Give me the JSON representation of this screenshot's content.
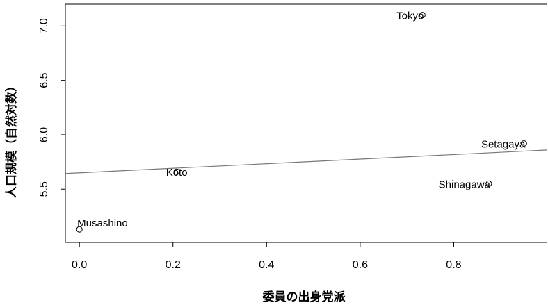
{
  "chart_data": {
    "type": "scatter",
    "xlabel": "委員の出身党派",
    "ylabel": "人口規模（自然対数）",
    "xlim": [
      -0.03,
      1.0
    ],
    "ylim": [
      5.01,
      7.2
    ],
    "x_ticks": [
      0.0,
      0.2,
      0.4,
      0.6,
      0.8
    ],
    "x_tick_labels": [
      "0.0",
      "0.2",
      "0.4",
      "0.6",
      "0.8"
    ],
    "y_ticks": [
      5.5,
      6.0,
      6.5,
      7.0
    ],
    "y_tick_labels": [
      "5.5",
      "6.0",
      "6.5",
      "7.0"
    ],
    "grid": false,
    "points": [
      {
        "label": "Tokyo",
        "x": 0.733,
        "y": 7.1
      },
      {
        "label": "Setagaya",
        "x": 0.95,
        "y": 5.92
      },
      {
        "label": "Koto",
        "x": 0.208,
        "y": 5.66
      },
      {
        "label": "Shinagawa",
        "x": 0.875,
        "y": 5.55
      },
      {
        "label": "Musashino",
        "x": 0.0,
        "y": 5.13
      }
    ],
    "fit_line": {
      "intercept": 5.65,
      "slope": 0.21
    }
  }
}
